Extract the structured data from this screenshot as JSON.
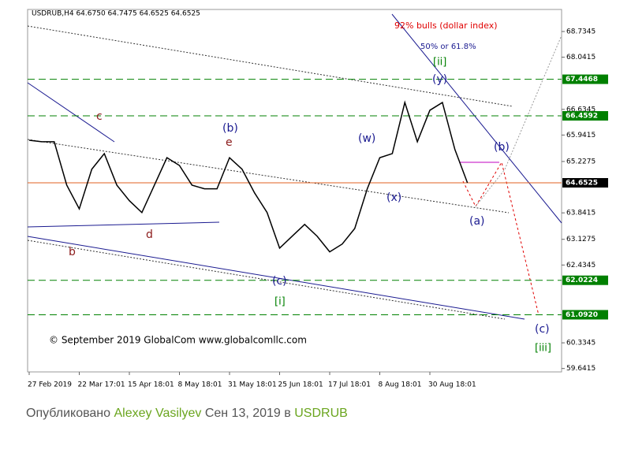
{
  "chart_data": {
    "type": "line",
    "title": "USDRUB,H4  64.6750 64.7475 64.6525 64.6525",
    "categories": [
      "27 Feb 2019",
      null,
      null,
      null,
      "22 Mar 17:01",
      null,
      null,
      null,
      "15 Apr 18:01",
      null,
      null,
      null,
      "8 May 18:01",
      null,
      null,
      null,
      "31 May 18:01",
      null,
      null,
      null,
      "25 Jun 18:01",
      null,
      null,
      null,
      "17 Jul 18:01",
      null,
      null,
      null,
      "8 Aug 18:01",
      null,
      null,
      null,
      "30 Aug 18:01",
      null,
      null,
      null,
      null,
      null,
      null,
      null,
      null,
      null,
      null
    ],
    "values": [
      65.8,
      65.76,
      65.76,
      64.59,
      63.95,
      65.02,
      65.44,
      64.59,
      64.17,
      63.85,
      64.59,
      65.33,
      65.12,
      64.59,
      64.49,
      64.49,
      65.33,
      65.02,
      64.38,
      63.85,
      62.89,
      63.21,
      63.53,
      63.21,
      62.79,
      63.0,
      63.42,
      64.49,
      65.33,
      65.44,
      66.82,
      65.76,
      66.61,
      66.82,
      65.55,
      64.6525,
      null,
      null,
      null,
      null,
      null,
      null,
      null
    ],
    "color": "#000000",
    "ylim": [
      59.55,
      69.33
    ],
    "yticks": [
      68.7345,
      68.0415,
      66.6345,
      65.9415,
      65.2275,
      63.8415,
      63.1275,
      62.4345,
      60.3345,
      59.6415
    ],
    "levels": [
      {
        "value": 67.4468,
        "label": "67.4468",
        "color": "#008000"
      },
      {
        "value": 66.4592,
        "label": "66.4592",
        "color": "#008000"
      },
      {
        "value": 62.0224,
        "label": "62.0224",
        "color": "#008000"
      },
      {
        "value": 61.092,
        "label": "61.0920",
        "color": "#008000"
      }
    ],
    "last_price": {
      "value": 64.6525,
      "label": "64.6525",
      "color": "#e06020"
    },
    "annotations": [
      {
        "text": "92% bulls  (dollar index)",
        "color": "#e00000"
      },
      {
        "text": "50% or 61.8%",
        "color": "#1a1a90"
      },
      {
        "text": "[ii]",
        "color": "#008000"
      },
      {
        "text": "(y)",
        "color": "#1a1a90"
      },
      {
        "text": "c",
        "color": "#8b1a1a"
      },
      {
        "text": "(b)",
        "color": "#1a1a90"
      },
      {
        "text": "e",
        "color": "#8b1a1a"
      },
      {
        "text": "(w)",
        "color": "#1a1a90"
      },
      {
        "text": "(b)",
        "color": "#1a1a90"
      },
      {
        "text": "(x)",
        "color": "#1a1a90"
      },
      {
        "text": "(a)",
        "color": "#1a1a90"
      },
      {
        "text": "d",
        "color": "#8b1a1a"
      },
      {
        "text": "b",
        "color": "#8b1a1a"
      },
      {
        "text": "(c)",
        "color": "#1a1a90"
      },
      {
        "text": "[i]",
        "color": "#008000"
      },
      {
        "text": "(c)",
        "color": "#1a1a90"
      },
      {
        "text": "[iii]",
        "color": "#008000"
      },
      {
        "text": "© September 2019 GlobalCom www.globalcomllc.com",
        "color": "#000000"
      }
    ]
  },
  "footer": {
    "prefix": "Опубликовано",
    "author": "Alexey Vasilyev",
    "date": "Сен 13, 2019 в",
    "symbol": "USDRUB"
  }
}
